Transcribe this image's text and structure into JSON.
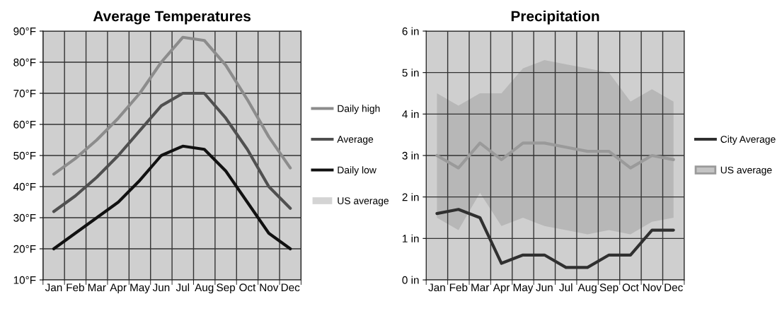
{
  "chart_data": [
    {
      "type": "line",
      "title": "Average Temperatures",
      "ylim": [
        10,
        90
      ],
      "yticks": [
        {
          "value": 10,
          "label": "10°F"
        },
        {
          "value": 20,
          "label": "20°F"
        },
        {
          "value": 30,
          "label": "30°F"
        },
        {
          "value": 40,
          "label": "40°F"
        },
        {
          "value": 50,
          "label": "50°F"
        },
        {
          "value": 60,
          "label": "60°F"
        },
        {
          "value": 70,
          "label": "70°F"
        },
        {
          "value": 80,
          "label": "80°F"
        },
        {
          "value": 90,
          "label": "90°F"
        }
      ],
      "categories": [
        "Jan",
        "Feb",
        "Mar",
        "Apr",
        "May",
        "Jun",
        "Jul",
        "Aug",
        "Sep",
        "Oct",
        "Nov",
        "Dec"
      ],
      "grid": true,
      "legend": "right",
      "line_style": "solid",
      "marker": "none",
      "series": [
        {
          "name": "Daily high",
          "color": "#8c8c8c",
          "values": [
            44,
            49,
            55,
            62,
            70,
            80,
            88,
            87,
            79,
            68,
            56,
            46
          ]
        },
        {
          "name": "Average",
          "color": "#505050",
          "values": [
            32,
            37,
            43,
            50,
            58,
            66,
            70,
            70,
            62,
            52,
            40,
            33
          ]
        },
        {
          "name": "Daily low",
          "color": "#111111",
          "values": [
            20,
            25,
            30,
            35,
            42,
            50,
            53,
            52,
            45,
            35,
            25,
            20
          ]
        },
        {
          "name": "US average",
          "color": "#d4d4d4",
          "type": "area",
          "values": [
            null,
            null,
            null,
            null,
            null,
            null,
            null,
            null,
            null,
            null,
            null,
            null
          ]
        }
      ]
    },
    {
      "type": "line",
      "title": "Precipitation",
      "ylim": [
        0,
        6
      ],
      "yticks": [
        {
          "value": 0,
          "label": "0 in"
        },
        {
          "value": 1,
          "label": "1 in"
        },
        {
          "value": 2,
          "label": "2 in"
        },
        {
          "value": 3,
          "label": "3 in"
        },
        {
          "value": 4,
          "label": "4 in"
        },
        {
          "value": 5,
          "label": "5 in"
        },
        {
          "value": 6,
          "label": "6 in"
        }
      ],
      "categories": [
        "Jan",
        "Feb",
        "Mar",
        "Apr",
        "May",
        "Jun",
        "Jul",
        "Aug",
        "Sep",
        "Oct",
        "Nov",
        "Dec"
      ],
      "grid": true,
      "legend": "right",
      "line_style": "solid",
      "marker": "none",
      "series": [
        {
          "name": "City Average",
          "color": "#303030",
          "values": [
            1.6,
            1.7,
            1.5,
            0.4,
            0.6,
            0.6,
            0.3,
            0.3,
            0.6,
            0.6,
            1.2,
            1.2
          ]
        },
        {
          "name": "US average",
          "color": "#9a9a9a",
          "values": [
            3.0,
            2.7,
            3.3,
            2.9,
            3.3,
            3.3,
            3.2,
            3.1,
            3.1,
            2.7,
            3.0,
            2.9
          ],
          "lower": [
            1.5,
            1.2,
            2.1,
            1.3,
            1.5,
            1.3,
            1.2,
            1.1,
            1.2,
            1.1,
            1.4,
            1.5
          ],
          "upper": [
            4.5,
            4.2,
            4.5,
            4.5,
            5.1,
            5.3,
            5.2,
            5.1,
            5.0,
            4.3,
            4.6,
            4.3
          ]
        }
      ]
    }
  ]
}
